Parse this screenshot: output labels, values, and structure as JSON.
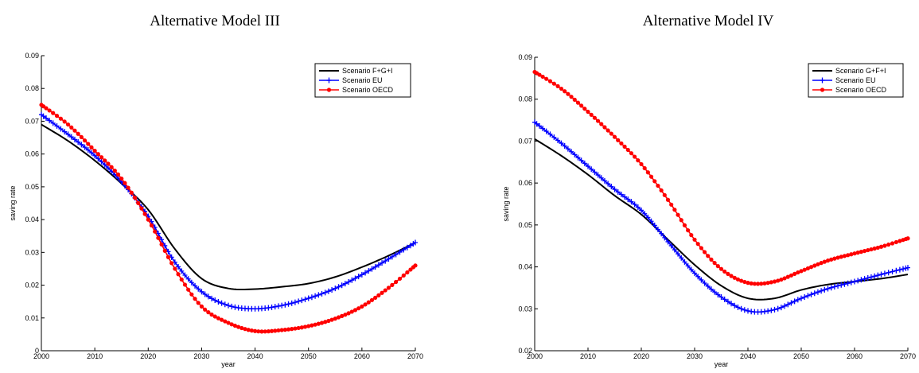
{
  "chart_data": [
    {
      "type": "line",
      "title": "Alternative Model III",
      "xlabel": "year",
      "ylabel": "saving rate",
      "xlim": [
        2000,
        2070
      ],
      "ylim": [
        0,
        0.09
      ],
      "xticks": [
        2000,
        2010,
        2020,
        2030,
        2040,
        2050,
        2060,
        2070
      ],
      "yticks": [
        0,
        0.01,
        0.02,
        0.03,
        0.04,
        0.05,
        0.06,
        0.07,
        0.08,
        0.09
      ],
      "ytick_labels": [
        "0",
        "0.01",
        "0.02",
        "0.03",
        "0.04",
        "0.05",
        "0.06",
        "0.07",
        "0.08",
        "0.09"
      ],
      "legend_position": "top-right",
      "series": [
        {
          "name": "Scenario F+G+I",
          "color": "#000000",
          "marker": "none",
          "x": [
            2000,
            2005,
            2010,
            2015,
            2020,
            2025,
            2030,
            2035,
            2040,
            2045,
            2050,
            2055,
            2060,
            2065,
            2070
          ],
          "y": [
            0.069,
            0.064,
            0.058,
            0.051,
            0.043,
            0.031,
            0.022,
            0.019,
            0.0188,
            0.0195,
            0.0205,
            0.0225,
            0.0255,
            0.029,
            0.033
          ]
        },
        {
          "name": "Scenario EU",
          "color": "#0000ff",
          "marker": "plus",
          "x": [
            2000,
            2005,
            2010,
            2015,
            2020,
            2025,
            2030,
            2035,
            2040,
            2045,
            2050,
            2055,
            2060,
            2065,
            2070
          ],
          "y": [
            0.072,
            0.066,
            0.0595,
            0.0515,
            0.041,
            0.027,
            0.018,
            0.0138,
            0.0128,
            0.0138,
            0.016,
            0.019,
            0.0232,
            0.028,
            0.033
          ]
        },
        {
          "name": "Scenario OECD",
          "color": "#ff0000",
          "marker": "dot",
          "x": [
            2000,
            2005,
            2010,
            2015,
            2020,
            2025,
            2030,
            2035,
            2040,
            2045,
            2050,
            2055,
            2060,
            2065,
            2070
          ],
          "y": [
            0.075,
            0.069,
            0.061,
            0.0525,
            0.04,
            0.025,
            0.0135,
            0.0085,
            0.006,
            0.0063,
            0.0075,
            0.0098,
            0.0135,
            0.0192,
            0.026
          ]
        }
      ]
    },
    {
      "type": "line",
      "title": "Alternative Model IV",
      "xlabel": "year",
      "ylabel": "saving rate",
      "xlim": [
        2000,
        2070
      ],
      "ylim": [
        0.02,
        0.09
      ],
      "xticks": [
        2000,
        2010,
        2020,
        2030,
        2040,
        2050,
        2060,
        2070
      ],
      "yticks": [
        0.02,
        0.03,
        0.04,
        0.05,
        0.06,
        0.07,
        0.08,
        0.09
      ],
      "ytick_labels": [
        "0.02",
        "0.03",
        "0.04",
        "0.05",
        "0.06",
        "0.07",
        "0.08",
        "0.09"
      ],
      "legend_position": "top-right",
      "series": [
        {
          "name": "Scenario G+F+I",
          "color": "#000000",
          "marker": "none",
          "x": [
            2000,
            2005,
            2010,
            2015,
            2020,
            2025,
            2030,
            2035,
            2040,
            2045,
            2050,
            2055,
            2060,
            2065,
            2070
          ],
          "y": [
            0.0705,
            0.0665,
            0.062,
            0.057,
            0.0525,
            0.0465,
            0.0405,
            0.0355,
            0.0325,
            0.0325,
            0.0345,
            0.0358,
            0.0365,
            0.0372,
            0.0382
          ]
        },
        {
          "name": "Scenario EU",
          "color": "#0000ff",
          "marker": "plus",
          "x": [
            2000,
            2005,
            2010,
            2015,
            2020,
            2025,
            2030,
            2035,
            2040,
            2045,
            2050,
            2055,
            2060,
            2065,
            2070
          ],
          "y": [
            0.0745,
            0.0695,
            0.064,
            0.0585,
            0.0535,
            0.046,
            0.0385,
            0.0328,
            0.0295,
            0.0298,
            0.0325,
            0.0348,
            0.0365,
            0.0382,
            0.0398
          ]
        },
        {
          "name": "Scenario OECD",
          "color": "#ff0000",
          "marker": "dot",
          "x": [
            2000,
            2005,
            2010,
            2015,
            2020,
            2025,
            2030,
            2035,
            2040,
            2045,
            2050,
            2055,
            2060,
            2065,
            2070
          ],
          "y": [
            0.0865,
            0.0825,
            0.077,
            0.071,
            0.0645,
            0.056,
            0.0465,
            0.0395,
            0.0362,
            0.0365,
            0.039,
            0.0415,
            0.0432,
            0.0448,
            0.0468
          ]
        }
      ]
    }
  ]
}
